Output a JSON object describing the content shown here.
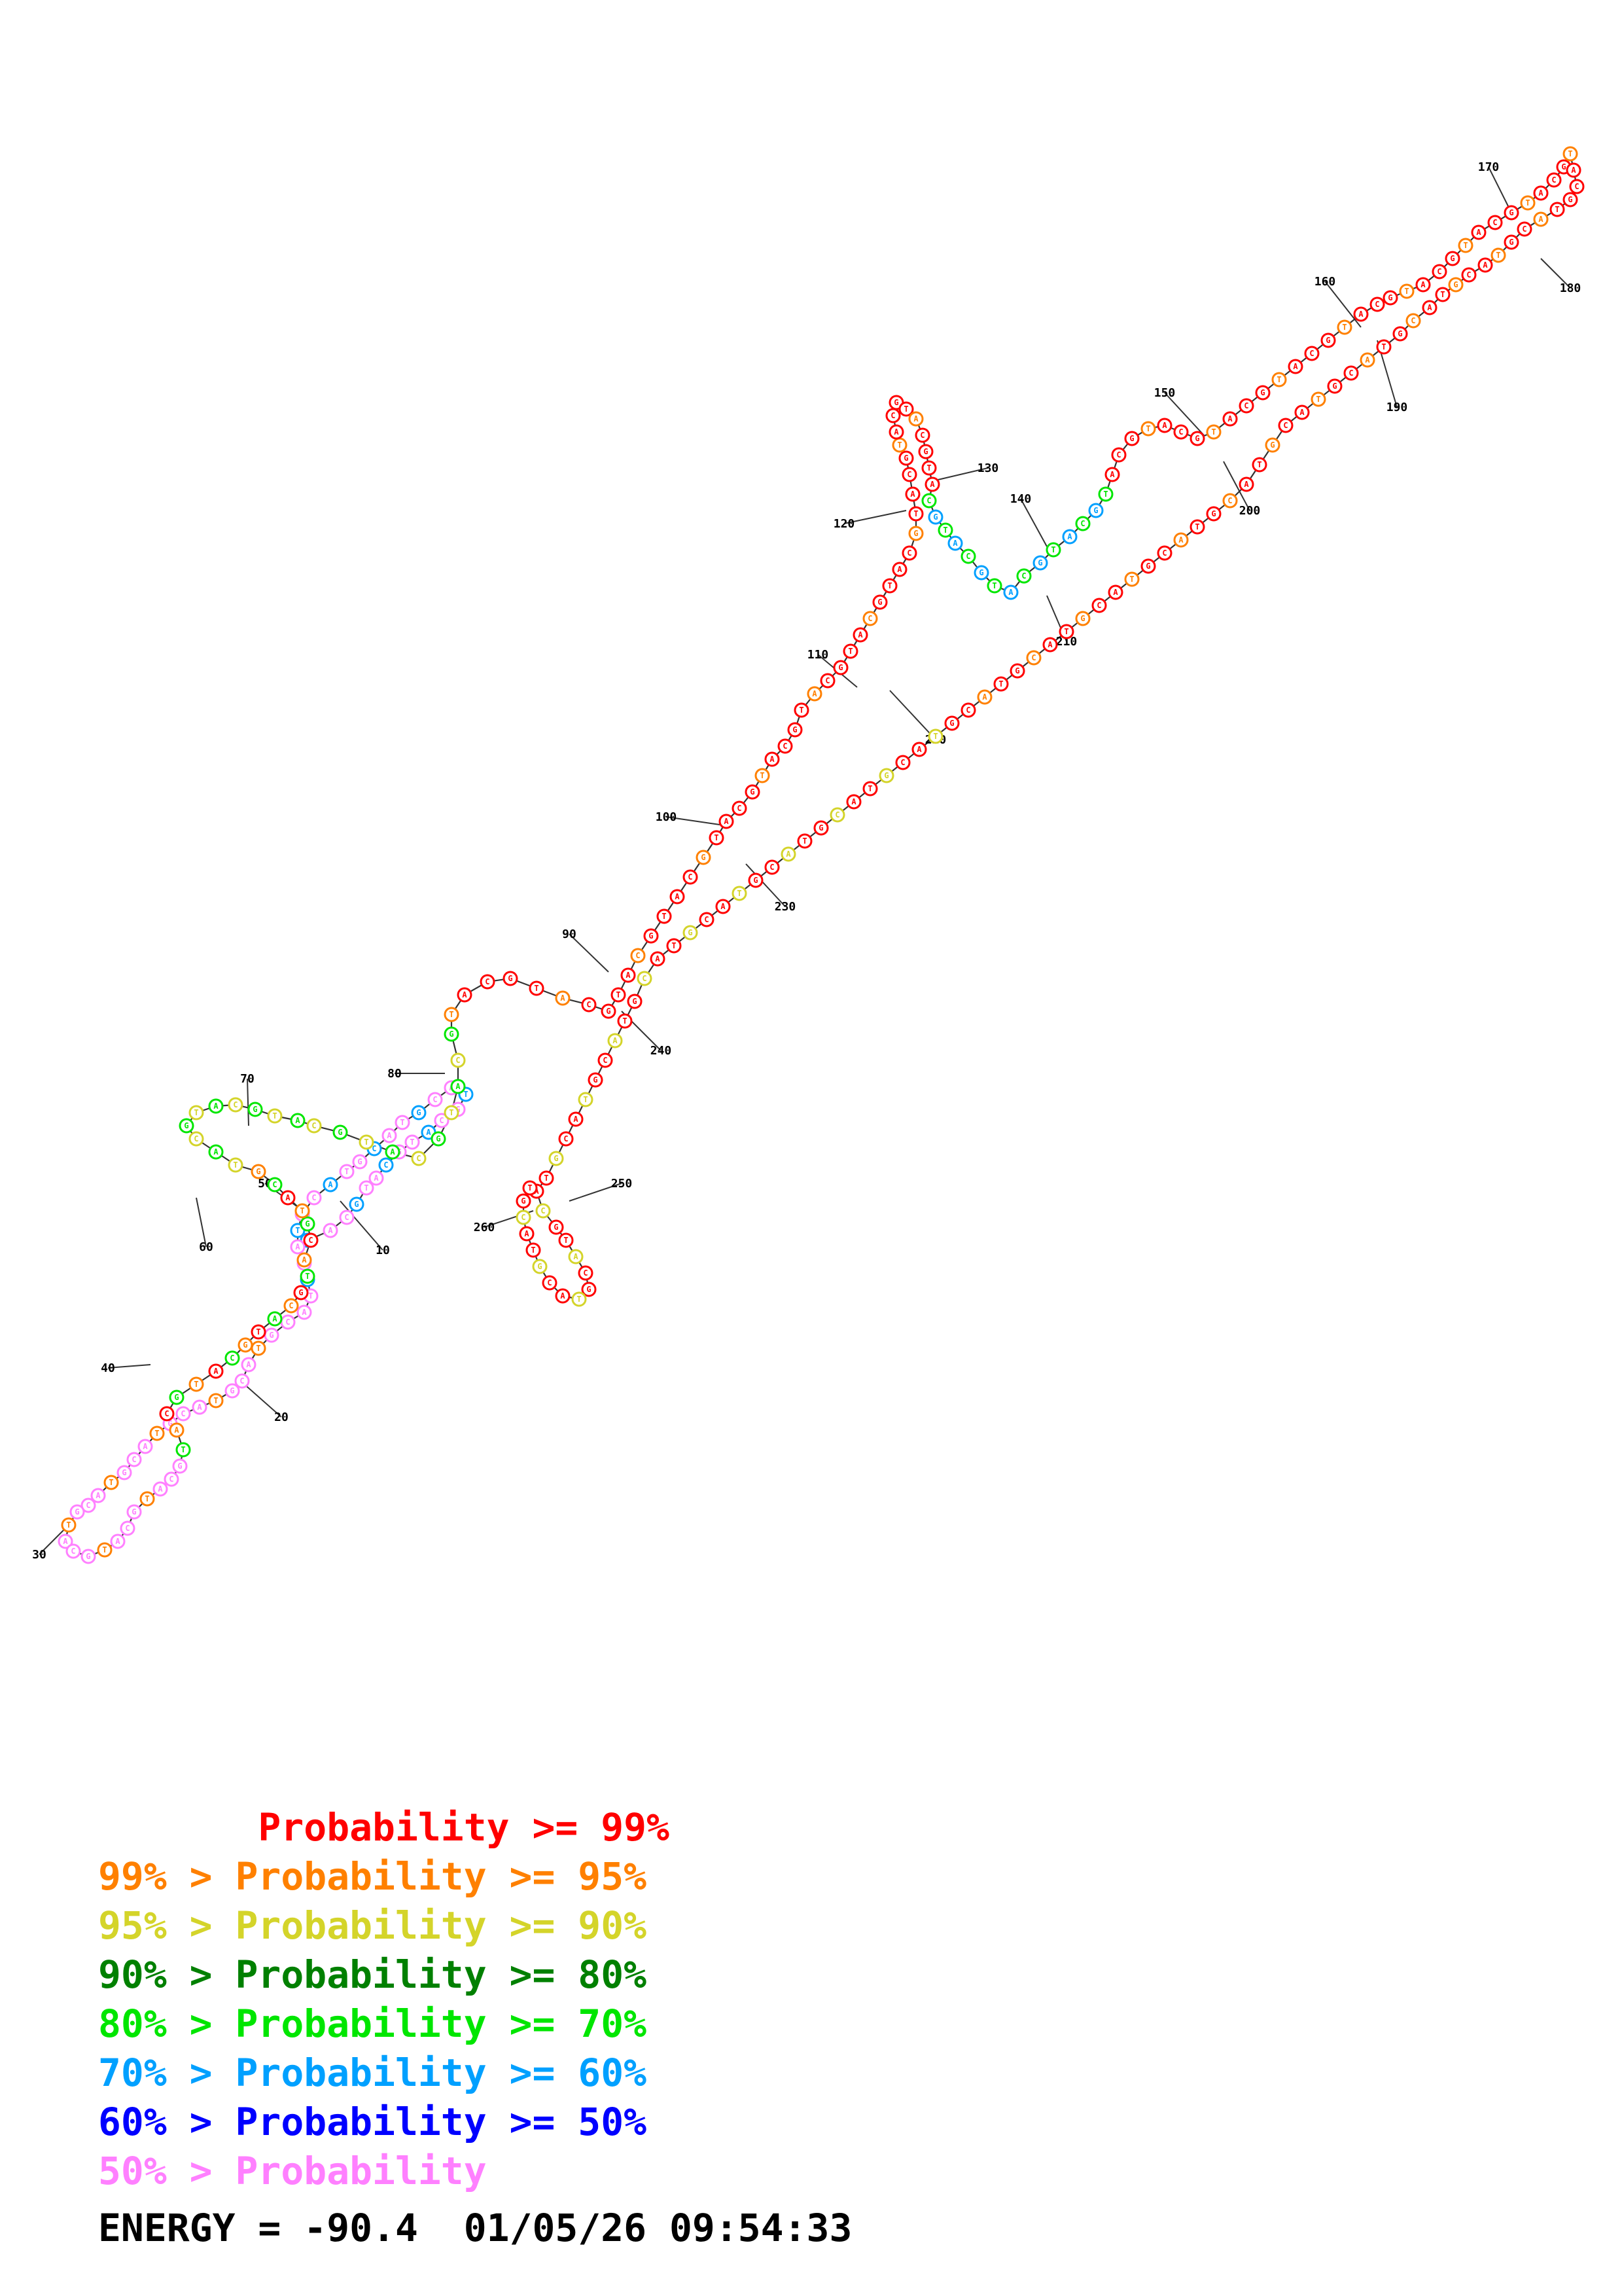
{
  "tick_labels": [
    "10",
    "20",
    "30",
    "40",
    "50",
    "60",
    "70",
    "80",
    "90",
    "100",
    "110",
    "120",
    "130",
    "140",
    "150",
    "160",
    "170",
    "180",
    "190",
    "200",
    "210",
    "220",
    "230",
    "240",
    "250",
    "260"
  ],
  "legend": [
    {
      "text": "       Probability >= 99%",
      "color": "#ff0000"
    },
    {
      "text": "99% > Probability >= 95%",
      "color": "#ff8000"
    },
    {
      "text": "95% > Probability >= 90%",
      "color": "#d4d42a"
    },
    {
      "text": "90% > Probability >= 80%",
      "color": "#008000"
    },
    {
      "text": "80% > Probability >= 70%",
      "color": "#00e600"
    },
    {
      "text": "70% > Probability >= 60%",
      "color": "#00a0ff"
    },
    {
      "text": "60% > Probability >= 50%",
      "color": "#0000ff"
    },
    {
      "text": "50% > Probability",
      "color": "#ff80ff"
    }
  ],
  "energy_label": "ENERGY = ",
  "energy_value": "-90.4",
  "timestamp": "01/05/26 09:54:33",
  "nucleotide_colors": {
    "red": "#ff0000",
    "orange": "#ff8000",
    "yellow": "#d4d42a",
    "darkgreen": "#008000",
    "green": "#00e600",
    "cyan": "#00a0ff",
    "blue": "#0000ff",
    "pink": "#ff80ff"
  }
}
